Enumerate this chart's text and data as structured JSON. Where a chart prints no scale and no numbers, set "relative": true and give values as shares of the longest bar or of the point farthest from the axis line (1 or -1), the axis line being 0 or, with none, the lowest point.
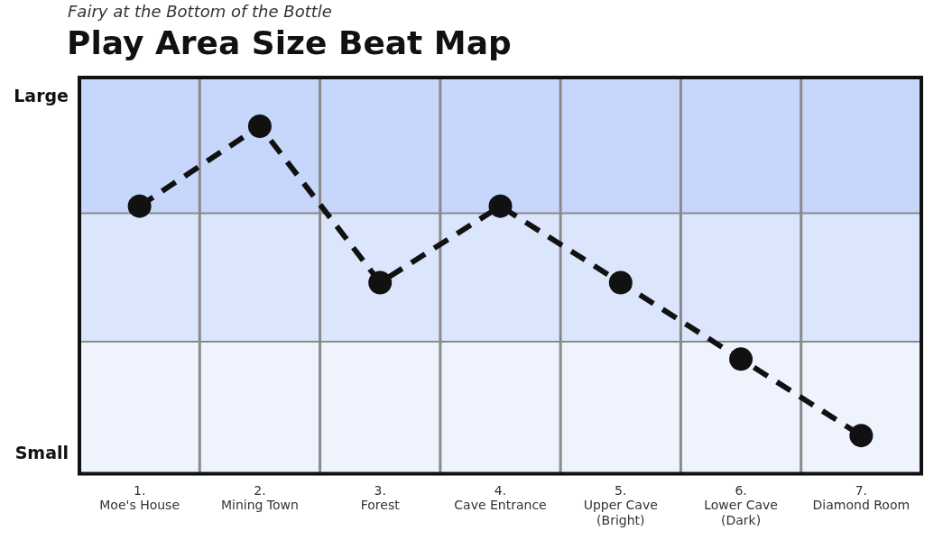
{
  "chart_data": {
    "type": "line",
    "subtitle": "Fairy at the Bottom of the Bottle",
    "title": "Play Area Size Beat Map",
    "categories": [
      "1.\nMoe's House",
      "2.\nMining Town",
      "3.\nForest",
      "4.\nCave Entrance",
      "5.\nUpper Cave\n(Bright)",
      "6.\nLower Cave\n(Dark)",
      "7.\nDiamond Room"
    ],
    "series": [
      {
        "color": "#111111",
        "values": [
          0.77,
          1,
          0.55,
          0.77,
          0.55,
          0.33,
          0.11
        ]
      }
    ],
    "relative": true,
    "annotations": [
      "Large",
      "Small"
    ],
    "bands": [
      {
        "axis": "y",
        "from": 0,
        "to": 0.38,
        "color": "#eef3fd"
      },
      {
        "axis": "y",
        "from": 0.38,
        "to": 0.75,
        "color": "#dbe5fc"
      },
      {
        "axis": "y",
        "from": 0.75,
        "to": 1.14,
        "color": "#c6d7fb"
      }
    ],
    "ref_lines": [
      {
        "axis": "y",
        "value": 0.38,
        "color": "#8a8a8a"
      },
      {
        "axis": "y",
        "value": 0.75,
        "color": "#8a8a8a"
      }
    ],
    "grid": "x",
    "legend": false,
    "marker": "circle",
    "line_style": "dashed"
  }
}
